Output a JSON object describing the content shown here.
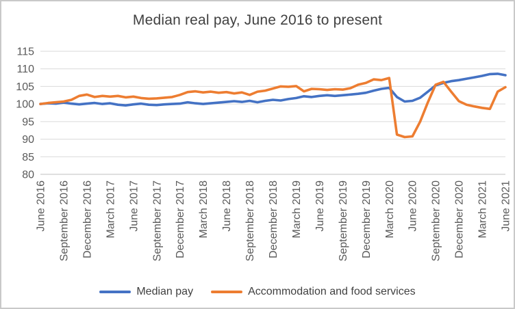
{
  "chart": {
    "title": "Median real pay, June 2016 to present",
    "colors": {
      "median_pay": "#4472C4",
      "accommodation": "#ED7D31",
      "gridline": "#D9D9D9",
      "axis_text": "#595959",
      "title_text": "#404040",
      "border": "#C9C9C9"
    }
  },
  "chart_data": {
    "type": "line",
    "title": "Median real pay, June 2016 to present",
    "grid": "horizontal",
    "legend_position": "bottom",
    "ylim": [
      80,
      115
    ],
    "y_ticks": [
      80,
      85,
      90,
      95,
      100,
      105,
      110,
      115
    ],
    "x_tick_every": 3,
    "x_tick_labels": [
      "June 2016",
      "September 2016",
      "December 2016",
      "March 2017",
      "June 2017",
      "September 2017",
      "December 2017",
      "March 2018",
      "June 2018",
      "September 2018",
      "December 2018",
      "March 2019",
      "June 2019",
      "September 2019",
      "December 2019",
      "March 2020",
      "June 2020",
      "September 2020",
      "December 2020",
      "March 2021",
      "June 2021"
    ],
    "x_frequency": "monthly",
    "series": [
      {
        "name": "Median pay",
        "color": "#4472C4",
        "values": [
          100.0,
          100.2,
          100.1,
          100.4,
          100.1,
          99.9,
          100.1,
          100.3,
          100.0,
          100.2,
          99.8,
          99.6,
          99.9,
          100.1,
          99.8,
          99.7,
          99.9,
          100.0,
          100.1,
          100.5,
          100.2,
          100.0,
          100.2,
          100.4,
          100.6,
          100.8,
          100.6,
          100.9,
          100.5,
          100.9,
          101.2,
          101.0,
          101.4,
          101.7,
          102.2,
          102.0,
          102.3,
          102.5,
          102.3,
          102.5,
          102.7,
          102.9,
          103.2,
          103.8,
          104.3,
          104.6,
          102.0,
          100.7,
          100.9,
          101.8,
          103.5,
          105.3,
          106.0,
          106.5,
          106.8,
          107.2,
          107.6,
          108.0,
          108.5,
          108.6,
          108.2
        ]
      },
      {
        "name": "Accommodation and food services",
        "color": "#ED7D31",
        "values": [
          100.0,
          100.3,
          100.5,
          100.7,
          101.2,
          102.3,
          102.7,
          102.0,
          102.3,
          102.1,
          102.3,
          101.9,
          102.1,
          101.7,
          101.5,
          101.6,
          101.8,
          102.0,
          102.6,
          103.4,
          103.6,
          103.3,
          103.5,
          103.2,
          103.4,
          103.0,
          103.3,
          102.6,
          103.5,
          103.8,
          104.4,
          105.0,
          104.9,
          105.1,
          103.6,
          104.3,
          104.2,
          104.0,
          104.2,
          104.1,
          104.5,
          105.5,
          106.0,
          107.0,
          106.8,
          107.4,
          91.3,
          90.6,
          90.8,
          95.0,
          100.5,
          105.5,
          106.3,
          103.5,
          100.8,
          99.8,
          99.3,
          98.9,
          98.6,
          103.5,
          104.8
        ]
      }
    ]
  }
}
